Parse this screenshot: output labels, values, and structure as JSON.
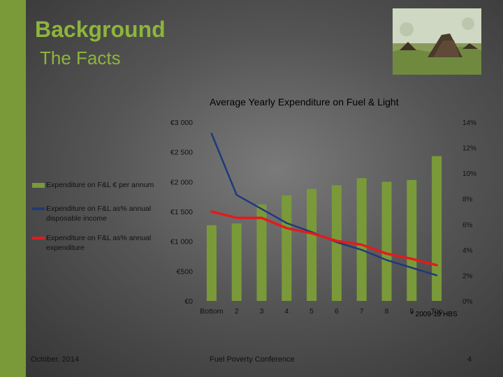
{
  "slide": {
    "title": "Background",
    "subtitle": "The Facts",
    "footer_left": "October, 2014",
    "footer_center": "Fuel Poverty Conference",
    "page_number": "4",
    "footnote": "* 2009-10 HBS"
  },
  "colors": {
    "accent_green": "#8db53c",
    "bar_green": "#7a9a3a",
    "line_blue": "#1f3a7a",
    "line_red": "#e31b1b"
  },
  "chart_data": {
    "type": "bar",
    "title": "Average Yearly Expenditure on Fuel & Light",
    "categories": [
      "Bottom",
      "2",
      "3",
      "4",
      "5",
      "6",
      "7",
      "8",
      "9",
      "Top"
    ],
    "left_ticks": [
      "€3 000",
      "€2 500",
      "€2 000",
      "€1 500",
      "€1 000",
      "€500",
      "€0"
    ],
    "right_ticks": [
      "14%",
      "12%",
      "10%",
      "8%",
      "6%",
      "4%",
      "2%",
      "0%"
    ],
    "ylim_left": [
      0,
      3000
    ],
    "ylim_right": [
      0,
      14
    ],
    "legend_position": "left",
    "series": [
      {
        "name": "Expenditure on F&L € per annum",
        "type": "bar",
        "axis": "left",
        "values": [
          1270,
          1300,
          1620,
          1770,
          1880,
          1940,
          2060,
          2000,
          2030,
          2430
        ]
      },
      {
        "name": "Expenditure on F&L as% annual disposable income",
        "type": "line",
        "axis": "right",
        "values": [
          13.1,
          8.3,
          7.2,
          6.1,
          5.4,
          4.6,
          4.0,
          3.2,
          2.6,
          2.0
        ]
      },
      {
        "name": "Expenditure on F&L as% annual expenditure",
        "type": "line",
        "axis": "right",
        "values": [
          7.0,
          6.5,
          6.5,
          5.7,
          5.3,
          4.7,
          4.4,
          3.7,
          3.3,
          2.8
        ]
      }
    ]
  }
}
